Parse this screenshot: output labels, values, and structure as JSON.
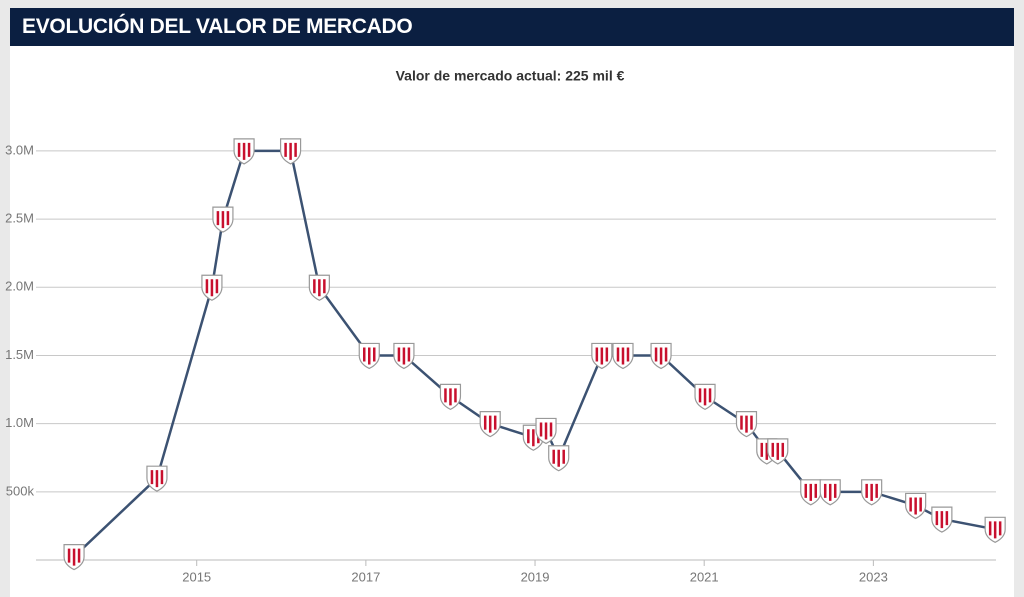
{
  "chart_data": {
    "type": "line",
    "title": "EVOLUCIÓN DEL VALOR DE MERCADO",
    "subtitle": "Valor de mercado actual: 225 mil €",
    "x": [
      2013.55,
      2014.53,
      2015.18,
      2015.31,
      2015.56,
      2016.11,
      2016.45,
      2017.04,
      2017.45,
      2018.0,
      2018.47,
      2018.98,
      2019.13,
      2019.28,
      2019.79,
      2020.04,
      2020.49,
      2021.01,
      2021.5,
      2021.74,
      2021.87,
      2022.26,
      2022.49,
      2022.98,
      2023.5,
      2023.81,
      2024.44
    ],
    "series": [
      {
        "name": "Valor de mercado",
        "color": "#3c5272",
        "values": [
          25000,
          600000,
          2000000,
          2500000,
          3000000,
          3000000,
          2000000,
          1500000,
          1500000,
          1200000,
          1000000,
          900000,
          950000,
          750000,
          1500000,
          1500000,
          1500000,
          1200000,
          1000000,
          800000,
          800000,
          500000,
          500000,
          500000,
          400000,
          300000,
          225000
        ]
      }
    ],
    "xlim": [
      2013.1,
      2024.45
    ],
    "ylim": [
      0,
      3300000
    ],
    "xticks": [
      2015,
      2017,
      2019,
      2021,
      2023
    ],
    "yticks": [
      {
        "value": 500000,
        "label": "500k"
      },
      {
        "value": 1000000,
        "label": "1.0M"
      },
      {
        "value": 1500000,
        "label": "1.5M"
      },
      {
        "value": 2000000,
        "label": "2.0M"
      },
      {
        "value": 2500000,
        "label": "2.5M"
      },
      {
        "value": 3000000,
        "label": "3.0M"
      }
    ],
    "grid": true
  }
}
